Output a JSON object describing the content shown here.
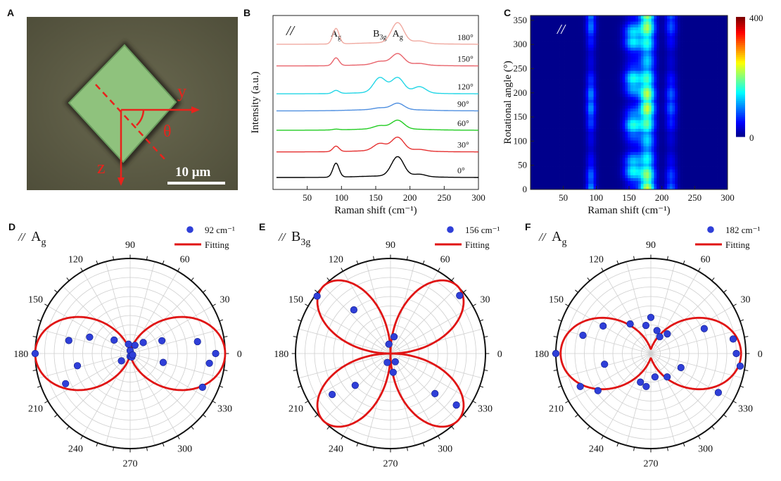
{
  "panel_labels": {
    "a": "A",
    "b": "B",
    "c": "C",
    "d": "D",
    "e": "E",
    "f": "F"
  },
  "panel_a": {
    "axis_y": "y",
    "axis_z": "z",
    "angle": "θ",
    "scalebar": "10 μm",
    "colors": {
      "background": "#5a5942",
      "flake": "#8ec27c",
      "axes": "#e8231c",
      "scalebar": "#ffffff"
    }
  },
  "chart_data": [
    {
      "id": "B",
      "type": "line",
      "polarization": "//",
      "xlabel": "Raman shift (cm⁻¹)",
      "ylabel": "Intensity (a.u.)",
      "xlim": [
        0,
        300
      ],
      "xticks": [
        50,
        100,
        150,
        200,
        250,
        300
      ],
      "peak_labels": [
        {
          "x": 92,
          "main": "A",
          "sub": "g"
        },
        {
          "x": 156,
          "main": "B",
          "sub": "3g"
        },
        {
          "x": 182,
          "main": "A",
          "sub": "g"
        }
      ],
      "series": [
        {
          "name": "0°",
          "color": "#000000",
          "offset": 0,
          "peaks": [
            [
              92,
              0.9
            ],
            [
              182,
              1.25
            ],
            [
              214,
              0.15
            ]
          ]
        },
        {
          "name": "30°",
          "color": "#e53030",
          "offset": 1.65,
          "peaks": [
            [
              92,
              0.35
            ],
            [
              156,
              0.45
            ],
            [
              182,
              0.85
            ],
            [
              214,
              0.1
            ]
          ]
        },
        {
          "name": "60°",
          "color": "#22cc22",
          "offset": 3.05,
          "peaks": [
            [
              92,
              0.05
            ],
            [
              156,
              0.2
            ],
            [
              182,
              0.55
            ]
          ]
        },
        {
          "name": "90°",
          "color": "#4f8fe0",
          "offset": 4.3,
          "peaks": [
            [
              156,
              0.1
            ],
            [
              182,
              0.4
            ]
          ]
        },
        {
          "name": "120°",
          "color": "#22d6e6",
          "offset": 5.4,
          "peaks": [
            [
              92,
              0.2
            ],
            [
              156,
              0.95
            ],
            [
              182,
              0.95
            ],
            [
              214,
              0.4
            ]
          ]
        },
        {
          "name": "150°",
          "color": "#e8636b",
          "offset": 7.2,
          "peaks": [
            [
              92,
              0.5
            ],
            [
              156,
              0.2
            ],
            [
              182,
              0.7
            ],
            [
              214,
              0.1
            ]
          ]
        },
        {
          "name": "180°",
          "color": "#f0a9a0",
          "offset": 8.6,
          "peaks": [
            [
              92,
              1.0
            ],
            [
              182,
              1.3
            ],
            [
              214,
              0.15
            ]
          ]
        }
      ]
    },
    {
      "id": "C",
      "type": "heatmap",
      "polarization": "//",
      "xlabel": "Raman shift (cm⁻¹)",
      "ylabel": "Rotational angle (°)",
      "xlim": [
        0,
        300
      ],
      "ylim": [
        0,
        360
      ],
      "xticks": [
        50,
        100,
        150,
        200,
        250,
        300
      ],
      "yticks": [
        0,
        50,
        100,
        150,
        200,
        250,
        300,
        350
      ],
      "colorbar": {
        "min": 0,
        "max": 400,
        "min_label": "0",
        "max_label": "400"
      },
      "bands": [
        {
          "center": 92,
          "width": 5,
          "amplitude": 110,
          "pattern": "cos2"
        },
        {
          "center": 156,
          "width": 9,
          "amplitude": 160,
          "pattern": "sin2_2"
        },
        {
          "center": 178,
          "width": 8,
          "amplitude": 230,
          "pattern": "mixed"
        },
        {
          "center": 214,
          "width": 6,
          "amplitude": 90,
          "pattern": "cos2"
        }
      ]
    },
    {
      "id": "D",
      "type": "polar",
      "title": {
        "pol": "//",
        "main": "A",
        "sub": "g"
      },
      "legend_point": "92 cm⁻¹",
      "legend_line": "Fitting",
      "angle_labels": [
        "0",
        "30",
        "60",
        "90",
        "120",
        "150",
        "180",
        "210",
        "240",
        "270",
        "300",
        "330"
      ],
      "fit": {
        "type": "ag",
        "a": 1.0,
        "c": 0.0
      },
      "points": [
        {
          "angle": 0,
          "r": 0.9
        },
        {
          "angle": 10,
          "r": 0.72
        },
        {
          "angle": 22,
          "r": 0.36
        },
        {
          "angle": 40,
          "r": 0.18
        },
        {
          "angle": 60,
          "r": 0.1
        },
        {
          "angle": 90,
          "r": 0.03
        },
        {
          "angle": 100,
          "r": 0.1
        },
        {
          "angle": 140,
          "r": 0.22
        },
        {
          "angle": 158,
          "r": 0.46
        },
        {
          "angle": 168,
          "r": 0.66
        },
        {
          "angle": 180,
          "r": 1.0
        },
        {
          "angle": 193,
          "r": 0.57
        },
        {
          "angle": 205,
          "r": 0.75
        },
        {
          "angle": 220,
          "r": 0.12
        },
        {
          "angle": 270,
          "r": 0.03
        },
        {
          "angle": 295,
          "r": 0.04
        },
        {
          "angle": 330,
          "r": 0.03
        },
        {
          "angle": 345,
          "r": 0.36
        },
        {
          "angle": 353,
          "r": 0.84
        },
        {
          "angle": 335,
          "r": 0.84
        }
      ]
    },
    {
      "id": "E",
      "type": "polar",
      "title": {
        "pol": "//",
        "main": "B",
        "sub": "3g"
      },
      "legend_point": "156 cm⁻¹",
      "legend_line": "Fitting",
      "angle_labels": [
        "0",
        "30",
        "60",
        "90",
        "120",
        "150",
        "180",
        "210",
        "240",
        "270",
        "300",
        "330"
      ],
      "fit": {
        "type": "b3g",
        "a": 1.0
      },
      "points": [
        {
          "angle": 40,
          "r": 0.95
        },
        {
          "angle": 78,
          "r": 0.18
        },
        {
          "angle": 100,
          "r": 0.1
        },
        {
          "angle": 130,
          "r": 0.6
        },
        {
          "angle": 142,
          "r": 0.98
        },
        {
          "angle": 215,
          "r": 0.75
        },
        {
          "angle": 222,
          "r": 0.5
        },
        {
          "angle": 250,
          "r": 0.1
        },
        {
          "angle": 278,
          "r": 0.2
        },
        {
          "angle": 300,
          "r": 0.1
        },
        {
          "angle": 318,
          "r": 0.63
        },
        {
          "angle": 322,
          "r": 0.88
        }
      ]
    },
    {
      "id": "F",
      "type": "polar",
      "title": {
        "pol": "//",
        "main": "A",
        "sub": "g"
      },
      "legend_point": "182 cm⁻¹",
      "legend_line": "Fitting",
      "angle_labels": [
        "0",
        "30",
        "60",
        "90",
        "120",
        "150",
        "180",
        "210",
        "240",
        "270",
        "300",
        "330"
      ],
      "fit": {
        "type": "ag",
        "a": 0.9,
        "c": 0.05
      },
      "points": [
        {
          "angle": 0,
          "r": 0.9
        },
        {
          "angle": 352,
          "r": 0.95
        },
        {
          "angle": 10,
          "r": 0.88
        },
        {
          "angle": 25,
          "r": 0.62
        },
        {
          "angle": 50,
          "r": 0.27
        },
        {
          "angle": 62,
          "r": 0.2
        },
        {
          "angle": 75,
          "r": 0.25
        },
        {
          "angle": 90,
          "r": 0.38
        },
        {
          "angle": 100,
          "r": 0.3
        },
        {
          "angle": 125,
          "r": 0.38
        },
        {
          "angle": 150,
          "r": 0.58
        },
        {
          "angle": 165,
          "r": 0.74
        },
        {
          "angle": 180,
          "r": 1.0
        },
        {
          "angle": 193,
          "r": 0.5
        },
        {
          "angle": 205,
          "r": 0.82
        },
        {
          "angle": 215,
          "r": 0.68
        },
        {
          "angle": 250,
          "r": 0.32
        },
        {
          "angle": 262,
          "r": 0.35
        },
        {
          "angle": 280,
          "r": 0.25
        },
        {
          "angle": 305,
          "r": 0.3
        },
        {
          "angle": 335,
          "r": 0.35
        },
        {
          "angle": 330,
          "r": 0.82
        }
      ]
    }
  ]
}
